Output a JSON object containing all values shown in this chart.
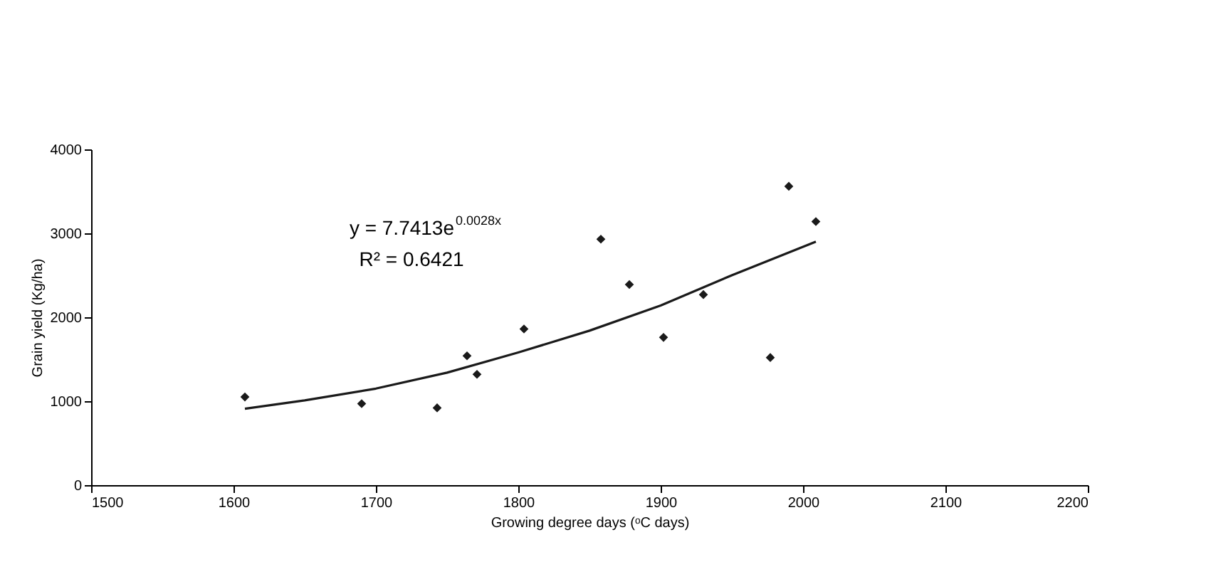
{
  "chart_data": {
    "type": "scatter",
    "xlabel": "Growing degree days (ᵒC days)",
    "ylabel": "Grain yield (Kg/ha)",
    "xlim": [
      1500,
      2200
    ],
    "xticks": [
      1500,
      1600,
      1700,
      1800,
      1900,
      2000,
      2100,
      2200
    ],
    "ylim": [
      0,
      4000
    ],
    "yticks": [
      0,
      1000,
      2000,
      3000,
      4000
    ],
    "grid": false,
    "series": [
      {
        "marker": "diamond",
        "color": "#1a1a1a",
        "x": [
          1608,
          1690,
          1743,
          1764,
          1771,
          1804,
          1858,
          1878,
          1902,
          1930,
          1977,
          1990,
          2009
        ],
        "values": [
          1050,
          970,
          920,
          1540,
          1320,
          1860,
          2930,
          2390,
          1760,
          2270,
          1520,
          3560,
          3140
        ]
      },
      {
        "type": "line",
        "color": "#1a1a1a",
        "line_style": "solid",
        "x": [
          1608,
          1650,
          1700,
          1750,
          1800,
          1850,
          1900,
          1950,
          2009
        ],
        "values": [
          910,
          1010,
          1150,
          1340,
          1580,
          1840,
          2140,
          2500,
          2900
        ]
      }
    ],
    "annotations": [
      "y = 7.7413e$^{0.0028x}$",
      "R² = 0.6421"
    ]
  }
}
